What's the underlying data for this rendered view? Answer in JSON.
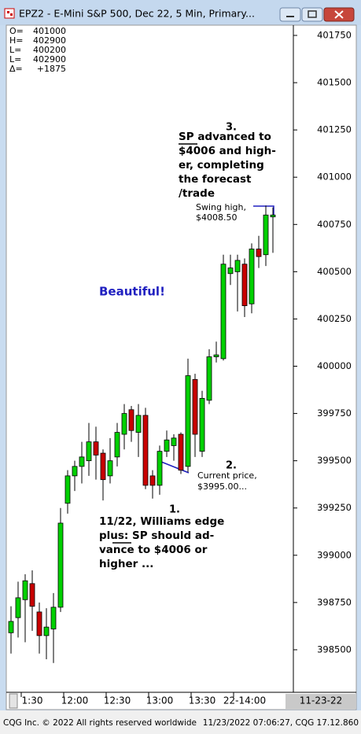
{
  "chart_data": {
    "type": "candlestick",
    "window_title": "EPZ2 - E-Mini S&P 500, Dec 22, 5 Min, Primary...",
    "info": [
      {
        "label": "O=",
        "value": "401000"
      },
      {
        "label": "H=",
        "value": "402900"
      },
      {
        "label": "L=",
        "value": "400200"
      },
      {
        "label": "L=",
        "value": "402900"
      },
      {
        "label": "Δ=",
        "value": "+1875"
      }
    ],
    "categories": [
      null,
      null,
      null,
      "1:30",
      null,
      null,
      null,
      null,
      null,
      "12:00",
      null,
      null,
      null,
      null,
      null,
      "12:30",
      null,
      null,
      null,
      null,
      null,
      "13:00",
      null,
      null,
      null,
      null,
      null,
      "13:30",
      null,
      null,
      null,
      null,
      null,
      "22-14:00",
      null,
      null,
      null,
      null
    ],
    "open": [
      398590,
      398670,
      398765,
      398850,
      398700,
      398575,
      398610,
      398725,
      399275,
      399420,
      399470,
      399500,
      399600,
      399540,
      399420,
      399520,
      399640,
      399770,
      399650,
      399740,
      399420,
      399370,
      399550,
      399580,
      399640,
      399470,
      399930,
      399550,
      399820,
      400050,
      400040,
      400490,
      400500,
      400540,
      400330,
      400620,
      400590,
      400790
    ],
    "high": [
      398730,
      398860,
      398900,
      398920,
      398750,
      398720,
      398800,
      399250,
      399450,
      399500,
      399600,
      399700,
      399680,
      399560,
      399620,
      399700,
      399800,
      399790,
      399800,
      399780,
      399450,
      399580,
      399660,
      399640,
      399650,
      400040,
      399960,
      399870,
      400090,
      400130,
      400590,
      400590,
      400590,
      400570,
      400650,
      400690,
      400850,
      400840
    ],
    "low": [
      398480,
      398565,
      398540,
      398600,
      398480,
      398450,
      398430,
      398700,
      399220,
      399340,
      399380,
      399420,
      399400,
      399290,
      399380,
      399470,
      399560,
      399600,
      399520,
      399350,
      399300,
      399320,
      399520,
      399500,
      399430,
      399440,
      399520,
      399520,
      399800,
      400020,
      400030,
      400430,
      400290,
      400260,
      400280,
      400520,
      400530,
      400600
    ],
    "close": [
      398650,
      398775,
      398865,
      398730,
      398575,
      398620,
      398725,
      399170,
      399420,
      399470,
      399520,
      399600,
      399530,
      399400,
      399500,
      399650,
      399750,
      399660,
      399740,
      399370,
      399370,
      399550,
      399610,
      399620,
      399450,
      399950,
      399640,
      399830,
      400050,
      400060,
      400540,
      400520,
      400560,
      400320,
      400620,
      400580,
      400800,
      400800
    ],
    "up_color": "#00d000",
    "down_color": "#c80000",
    "ylim": [
      398275,
      401800
    ],
    "yticks": [
      398500,
      398750,
      399000,
      399250,
      399500,
      399750,
      400000,
      400250,
      400500,
      400750,
      401000,
      401250,
      401500,
      401750
    ],
    "date_label": "11-23-22",
    "annotations": [
      {
        "lines": [
          "3."
        ]
      },
      {
        "lines": [
          "SP advanced to",
          "$4006 and high-",
          "er, completing",
          "the forecast",
          "/trade"
        ]
      },
      {
        "lines": [
          "Swing high,",
          "$4008.50"
        ]
      },
      {
        "lines": [
          "Beautiful!"
        ]
      },
      {
        "lines": [
          "2."
        ]
      },
      {
        "lines": [
          "Current price,",
          "$3995.00..."
        ]
      },
      {
        "lines": [
          "1."
        ]
      },
      {
        "lines": [
          "11/22, Williams edge",
          "plus: SP should ad-",
          "vance to $4006 or",
          "higher ..."
        ]
      }
    ],
    "footer_left": "CQG Inc. © 2022 All rights reserved worldwide",
    "footer_right": "11/23/2022 07:06:27, CQG 17.12.860"
  }
}
